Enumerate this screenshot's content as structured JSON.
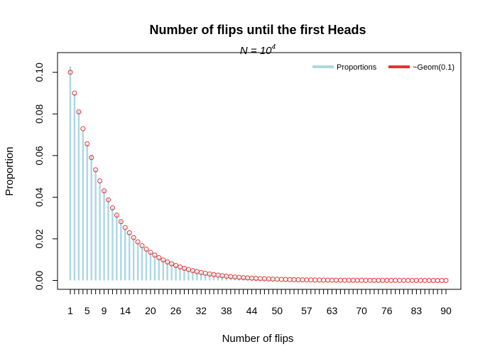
{
  "chart_data": {
    "type": "bar",
    "title": "Number of flips until the first Heads",
    "subtitle_base": "N = 10",
    "subtitle_exp": "4",
    "xlabel": "Number of flips",
    "ylabel": "Proportion",
    "xlim": [
      1,
      90
    ],
    "ylim": [
      0,
      0.104
    ],
    "y_ticks": [
      "0.00",
      "0.02",
      "0.04",
      "0.06",
      "0.08",
      "0.10"
    ],
    "x_tick_labels": [
      "1",
      "5",
      "9",
      "14",
      "20",
      "26",
      "32",
      "38",
      "44",
      "50",
      "57",
      "63",
      "70",
      "76",
      "83",
      "90"
    ],
    "legend_position": "top-right",
    "legend": [
      {
        "label": "Proportions",
        "color": "#add8e6"
      },
      {
        "label": "~Geom(0.1)",
        "color": "#e8312f"
      }
    ],
    "series": [
      {
        "name": "Proportions",
        "style": "vertical-lines",
        "color": "#add8e6",
        "x": [
          1,
          2,
          3,
          4,
          5,
          6,
          7,
          8,
          9,
          10,
          11,
          12,
          13,
          14,
          15,
          16,
          17,
          18,
          19,
          20,
          21,
          22,
          23,
          24,
          25,
          26,
          27,
          28,
          29,
          30,
          31,
          32,
          33,
          34,
          35,
          36,
          37,
          38,
          39,
          40,
          41,
          42,
          43,
          44,
          45,
          46,
          47,
          48,
          49,
          50
        ],
        "values": [
          0.1028,
          0.0897,
          0.0814,
          0.0718,
          0.0655,
          0.0604,
          0.0531,
          0.0474,
          0.0435,
          0.0393,
          0.0349,
          0.0318,
          0.0288,
          0.0254,
          0.0229,
          0.0207,
          0.0185,
          0.0167,
          0.015,
          0.0135,
          0.0122,
          0.0109,
          0.0098,
          0.0089,
          0.008,
          0.0072,
          0.0065,
          0.0058,
          0.0052,
          0.0047,
          0.0042,
          0.0038,
          0.0034,
          0.0031,
          0.0028,
          0.0025,
          0.0022,
          0.002,
          0.0018,
          0.0016,
          0.0014,
          0.0013,
          0.0011,
          0.001,
          0.0009,
          0.0008,
          0.0007,
          0.0006,
          0.0005,
          0.0004
        ]
      },
      {
        "name": "~Geom(0.1)",
        "style": "open-circles",
        "color": "#e8312f",
        "pmf_p": 0.1,
        "x_from": 1,
        "x_to": 90
      }
    ]
  }
}
